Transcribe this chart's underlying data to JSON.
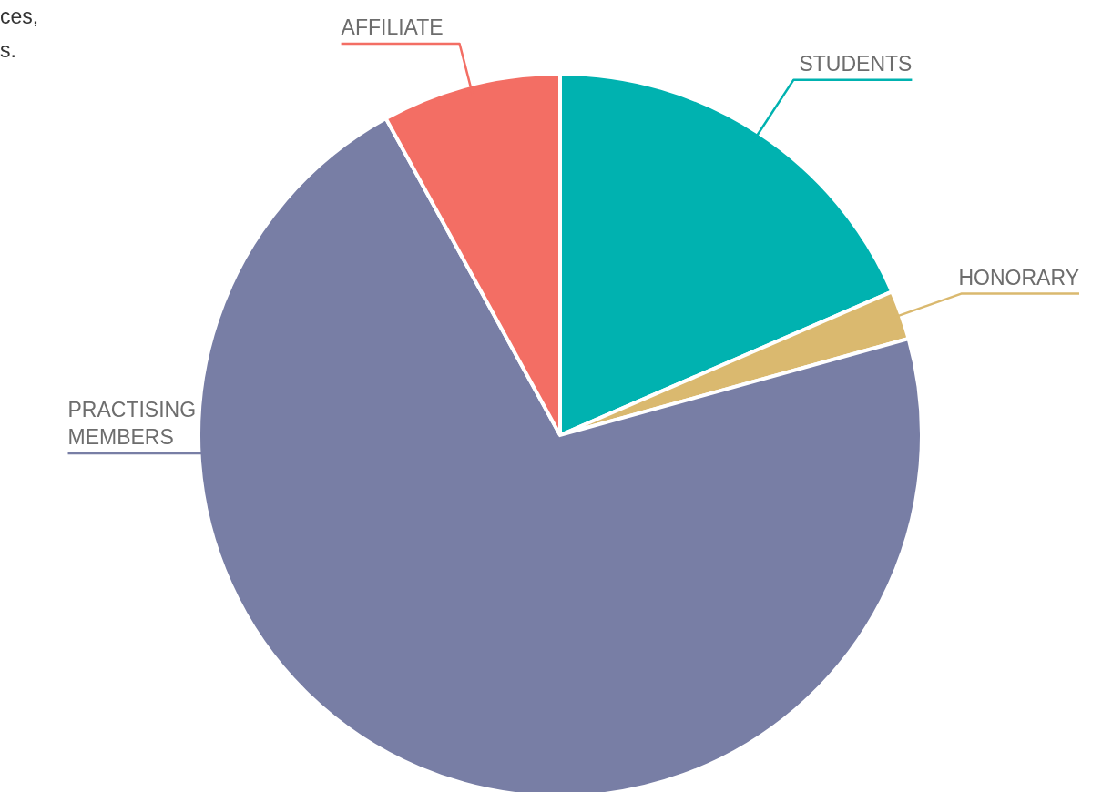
{
  "chart_data": {
    "type": "pie",
    "categories": [
      "STUDENTS",
      "HONORARY",
      "PRACTISING MEMBERS",
      "AFFILIATE"
    ],
    "values": [
      18.5,
      2.2,
      71.3,
      8.0
    ],
    "colors": [
      "#00b2b0",
      "#dab96f",
      "#787ea5",
      "#f36e64"
    ],
    "annotations": [
      "ces,",
      "s."
    ]
  }
}
